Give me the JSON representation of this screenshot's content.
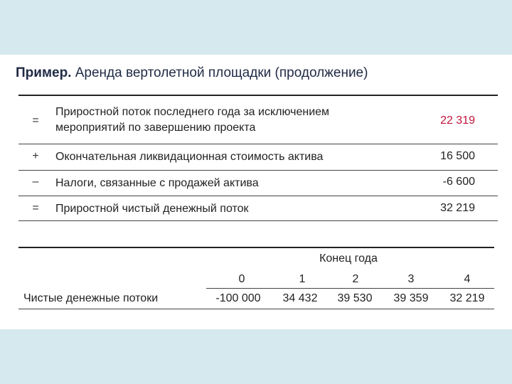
{
  "title": {
    "lead": "Пример.",
    "rest": "Аренда вертолетной площадки (продолжение)"
  },
  "rows": [
    {
      "sign": "=",
      "text_line1": "Приростной поток последнего года за исключением",
      "text_line2": "мероприятий по завершению проекта",
      "value": "22 319"
    },
    {
      "sign": "+",
      "text": "Окончательная ликвидационная стоимость актива",
      "value": "16 500"
    },
    {
      "sign": "–",
      "text": "Налоги, связанные с продажей актива",
      "value": "-6 600"
    },
    {
      "sign": "=",
      "text": "Приростной чистый денежный поток",
      "value": "32 219"
    }
  ],
  "cashflow": {
    "header": "Конец года",
    "row_label": "Чистые денежные потоки",
    "years": [
      "0",
      "1",
      "2",
      "3",
      "4"
    ],
    "values": [
      "-100 000",
      "34 432",
      "39 530",
      "39 359",
      "32 219"
    ]
  },
  "colors": {
    "background": "#d5e9ee",
    "highlight_value": "#c0143c"
  }
}
